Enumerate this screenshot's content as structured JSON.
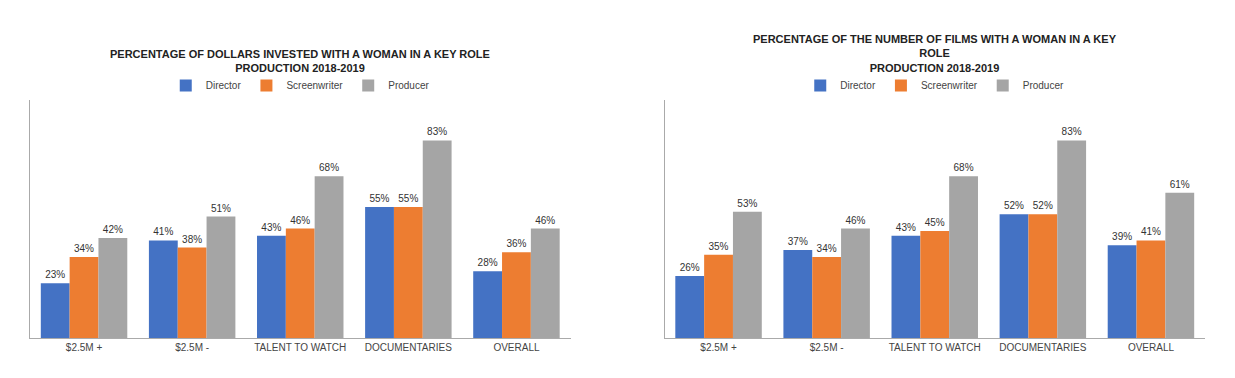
{
  "chart_data": [
    {
      "type": "bar",
      "title": "PERCENTAGE OF DOLLARS INVESTED WITH A WOMAN IN A KEY ROLE\nPRODUCTION 2018-2019",
      "categories": [
        "$2.5M +",
        "$2.5M -",
        "TALENT TO WATCH",
        "DOCUMENTARIES",
        "OVERALL"
      ],
      "series": [
        {
          "name": "Director",
          "color": "#4472C4",
          "values": [
            23,
            41,
            43,
            55,
            28
          ],
          "value_labels": [
            "23%",
            "41%",
            "43%",
            "55%",
            "28%"
          ]
        },
        {
          "name": "Screenwriter",
          "color": "#ED7D31",
          "values": [
            34,
            38,
            46,
            55,
            36
          ],
          "value_labels": [
            "34%",
            "38%",
            "46%",
            "55%",
            "36%"
          ]
        },
        {
          "name": "Producer",
          "color": "#A5A5A5",
          "values": [
            42,
            51,
            68,
            83,
            46
          ],
          "value_labels": [
            "42%",
            "51%",
            "68%",
            "83%",
            "46%"
          ]
        }
      ],
      "ylim": [
        0,
        100
      ],
      "tick_labels": "x",
      "grid": false,
      "legend": "top",
      "data_labels": true
    },
    {
      "type": "bar",
      "title": "PERCENTAGE OF THE NUMBER OF FILMS WITH A WOMAN IN A KEY\nROLE\nPRODUCTION 2018-2019",
      "categories": [
        "$2.5M +",
        "$2.5M -",
        "TALENT TO WATCH",
        "DOCUMENTARIES",
        "OVERALL"
      ],
      "series": [
        {
          "name": "Director",
          "color": "#4472C4",
          "values": [
            26,
            37,
            43,
            52,
            39
          ],
          "value_labels": [
            "26%",
            "37%",
            "43%",
            "52%",
            "39%"
          ]
        },
        {
          "name": "Screenwriter",
          "color": "#ED7D31",
          "values": [
            35,
            34,
            45,
            52,
            41
          ],
          "value_labels": [
            "35%",
            "34%",
            "45%",
            "52%",
            "41%"
          ]
        },
        {
          "name": "Producer",
          "color": "#A5A5A5",
          "values": [
            53,
            46,
            68,
            83,
            61
          ],
          "value_labels": [
            "53%",
            "46%",
            "68%",
            "83%",
            "61%"
          ]
        }
      ],
      "ylim": [
        0,
        100
      ],
      "tick_labels": "x",
      "grid": false,
      "legend": "top",
      "data_labels": true
    }
  ]
}
